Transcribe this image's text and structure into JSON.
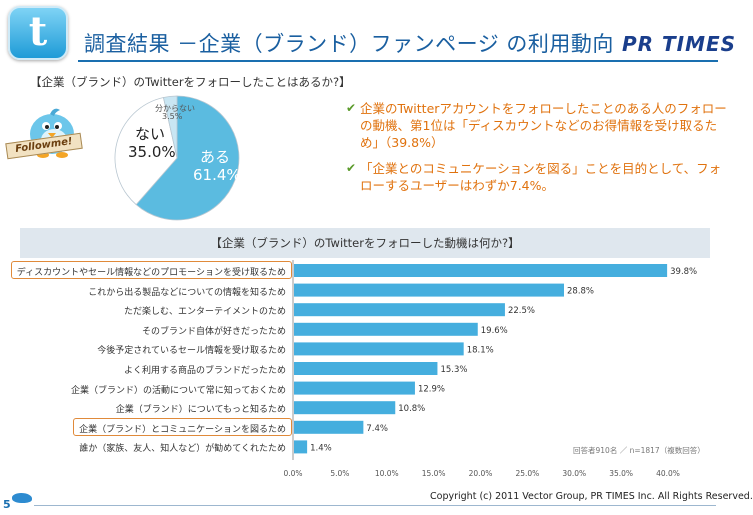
{
  "header": {
    "logo_glyph": "t",
    "title": "調査結果 －企業（ブランド）ファンページ の利用動向",
    "brand": "PR TIMES",
    "accent_color": "#1a6fb0"
  },
  "pie_section": {
    "title": "【企業（ブランド）のTwitterをフォローしたことはあるか?】",
    "badge_text": "Followme!",
    "mascot_icon": "twitter-bird-icon"
  },
  "notes": [
    {
      "text": "企業のTwitterアカウントをフォローしたことのある人のフォローの動機、第1位は「ディスカウントなどのお得情報を受け取るため」（39.8%）"
    },
    {
      "text": "「企業とのコミュニケーションを図る」ことを目的として、フォローするユーザーはわずか7.4%。"
    }
  ],
  "bar_section": {
    "title": "【企業（ブランド）のTwitterをフォローした動機は何か?】",
    "sample_note": "回答者910名 ／ n=1817（複数回答）"
  },
  "chart_data": [
    {
      "type": "pie",
      "title": "【企業（ブランド）のTwitterをフォローしたことはあるか?】",
      "slices": [
        {
          "label": "ある",
          "value": 61.4,
          "display": "61.4%",
          "color": "#5bbbe0"
        },
        {
          "label": "ない",
          "value": 35.0,
          "display": "35.0%",
          "color": "#ffffff"
        },
        {
          "label": "分からない",
          "value": 3.5,
          "display": "3.5%",
          "color": "#c9e6f3"
        }
      ]
    },
    {
      "type": "bar",
      "orientation": "horizontal",
      "title": "【企業（ブランド）のTwitterをフォローした動機は何か?】",
      "categories": [
        "ディスカウントやセール情報などのプロモーションを受け取るため",
        "これから出る製品などについての情報を知るため",
        "ただ楽しむ、エンターテイメントのため",
        "そのブランド自体が好きだったため",
        "今後予定されているセール情報を受け取るため",
        "よく利用する商品のブランドだったため",
        "企業（ブランド）の活動について常に知っておくため",
        "企業（ブランド）についてもっと知るため",
        "企業（ブランド）とコミュニケーションを図るため",
        "誰か（家族、友人、知人など）が勧めてくれたため"
      ],
      "values": [
        39.8,
        28.8,
        22.5,
        19.6,
        18.1,
        15.3,
        12.9,
        10.8,
        7.4,
        1.4
      ],
      "value_labels": [
        "39.8%",
        "28.8%",
        "22.5%",
        "19.6%",
        "18.1%",
        "15.3%",
        "12.9%",
        "10.8%",
        "7.4%",
        "1.4%"
      ],
      "highlighted_categories": [
        0,
        8
      ],
      "highlight_color": "#e08a3a",
      "bar_color": "#45aede",
      "xlim": [
        0,
        40
      ],
      "xticks": [
        "0.0%",
        "5.0%",
        "10.0%",
        "15.0%",
        "20.0%",
        "25.0%",
        "30.0%",
        "35.0%",
        "40.0%"
      ],
      "grid": false
    }
  ],
  "footer": {
    "copyright": "Copyright (c) 2011 Vector Group, PR TIMES Inc. All Rights Reserved.",
    "page_number": "5"
  }
}
